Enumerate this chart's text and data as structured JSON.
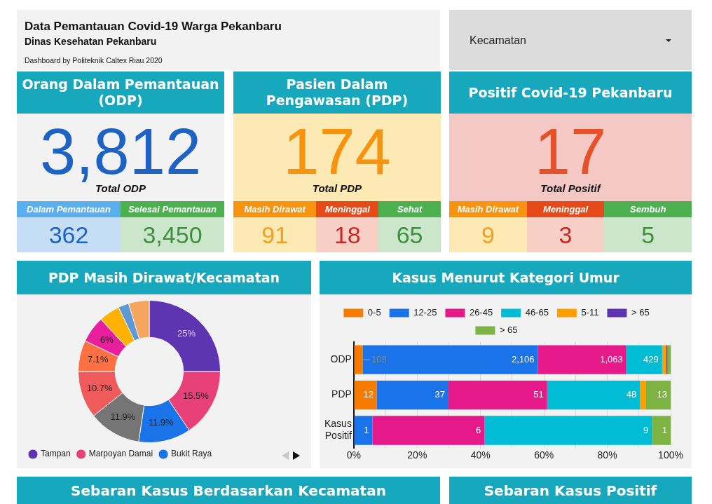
{
  "chart_data": [
    {
      "type": "other",
      "title": "Data Pemantauan Covid-19 Warga Pekanbaru",
      "subtitle": "Dinas Kesehatan Pekanbaru",
      "annotations": [
        "Dashboard by Politeknik Caltex Riau 2020",
        "Kecamatan"
      ]
    },
    {
      "type": "other",
      "title": "Orang Dalam Pemantauan (ODP)",
      "annotations": [
        "3,812",
        "Total ODP",
        "Dalam Pemantauan",
        "362",
        "Selesai Pemantauan",
        "3,450"
      ]
    },
    {
      "type": "other",
      "title": "Pasien Dalam Pengawasan (PDP)",
      "annotations": [
        "174",
        "Total PDP",
        "Masih Dirawat",
        "91",
        "Meninggal",
        "18",
        "Sehat",
        "65"
      ]
    },
    {
      "type": "other",
      "title": "Positif Covid-19 Pekanbaru",
      "annotations": [
        "17",
        "Total Positif",
        "Masih Dirawat",
        "9",
        "Meninggal",
        "3",
        "Sembuh",
        "5"
      ]
    },
    {
      "type": "donut",
      "title": "PDP Masih Dirawat/Kecamatan",
      "categories": [
        "Tampan",
        "Marpoyan Damai",
        "Bukit Raya",
        null,
        null,
        null,
        null,
        null,
        null,
        null
      ],
      "values": [
        25,
        15.5,
        11.9,
        11.9,
        10.7,
        7.1,
        6,
        4.8,
        2.4,
        4.7
      ],
      "colors": [
        "#5e35b1",
        "#e8417a",
        "#1a73e8",
        "#757575",
        "#ef5b5b",
        "#ff7043",
        "#e91e9c",
        "#ffb300",
        "#5c9ad6",
        "#f6a55e"
      ],
      "value_labels": [
        "25%",
        "15.5%",
        "11.9%",
        "11.9%",
        "10.7%",
        "7.1%",
        "6%",
        null,
        null,
        null
      ],
      "legend": "bottom"
    },
    {
      "type": "bar",
      "orientation": "horizontal",
      "stacked": true,
      "title": "Kasus Menurut Kategori Umur",
      "categories": [
        "ODP",
        "PDP",
        "Kasus Positif"
      ],
      "series": [
        {
          "name": "0-5",
          "color": "#f57c00",
          "values": [
            2.9,
            7.3,
            null
          ]
        },
        {
          "name": "12-25",
          "color": "#1a73e8",
          "values": [
            55.2,
            22.6,
            5.9
          ]
        },
        {
          "name": "26-45",
          "color": "#e6198a",
          "values": [
            27.9,
            31.1,
            35.3
          ]
        },
        {
          "name": "46-65",
          "color": "#00bcd4",
          "values": [
            11.3,
            29.3,
            52.9
          ]
        },
        {
          "name": "5-11",
          "color": "#ffa000",
          "values": [
            1.3,
            1.8,
            null
          ]
        },
        {
          "name": "> 65",
          "color": "#5e35b1",
          "values": [
            0.4,
            null,
            null
          ]
        },
        {
          "name": "> 65",
          "color": "#7cb342",
          "values": [
            1.0,
            7.9,
            5.9
          ]
        }
      ],
      "annotations": [
        {
          "text": "109",
          "x": 2.9,
          "y": "ODP"
        },
        {
          "text": "2,106",
          "x": 58.1,
          "y": "ODP"
        },
        {
          "text": "1,063",
          "x": 86.0,
          "y": "ODP"
        },
        {
          "text": "429",
          "x": 97.3,
          "y": "ODP"
        },
        {
          "text": "12",
          "x": 7.3,
          "y": "PDP"
        },
        {
          "text": "37",
          "x": 29.9,
          "y": "PDP"
        },
        {
          "text": "51",
          "x": 61.0,
          "y": "PDP"
        },
        {
          "text": "48",
          "x": 90.3,
          "y": "PDP"
        },
        {
          "text": "13",
          "x": 100,
          "y": "PDP"
        },
        {
          "text": "1",
          "x": 5.9,
          "y": "Kasus Positif"
        },
        {
          "text": "6",
          "x": 41.2,
          "y": "Kasus Positif"
        },
        {
          "text": "9",
          "x": 94.1,
          "y": "Kasus Positif"
        },
        {
          "text": "1",
          "x": 100,
          "y": "Kasus Positif"
        }
      ],
      "xlim": [
        0,
        100
      ],
      "xticks": [
        {
          "value": 0,
          "label": "0%"
        },
        {
          "value": 10,
          "label": null
        },
        {
          "value": 20,
          "label": "20%"
        },
        {
          "value": 30,
          "label": null
        },
        {
          "value": 40,
          "label": "40%"
        },
        {
          "value": 50,
          "label": null
        },
        {
          "value": 60,
          "label": "60%"
        },
        {
          "value": 70,
          "label": null
        },
        {
          "value": 80,
          "label": "80%"
        },
        {
          "value": 90,
          "label": null
        },
        {
          "value": 100,
          "label": "100%"
        }
      ],
      "grid": "x",
      "legend": "top"
    },
    {
      "type": "other",
      "title": "Sebaran Kasus Berdasarkan Kecamatan"
    },
    {
      "type": "other",
      "title": "Sebaran Kasus Positif"
    }
  ]
}
